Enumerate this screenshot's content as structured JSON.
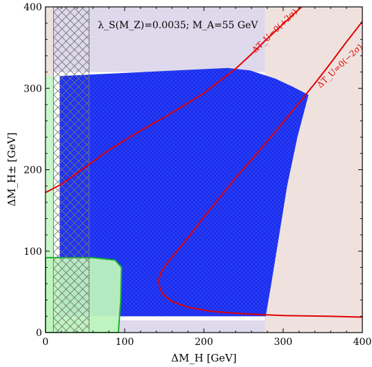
{
  "chart_data": {
    "type": "line",
    "xlabel": "ΔM_H [GeV]",
    "ylabel": "ΔM_H± [GeV]",
    "xlim": [
      0,
      400
    ],
    "ylim": [
      0,
      400
    ],
    "x_ticks": [
      0,
      100,
      200,
      300,
      400
    ],
    "y_ticks": [
      0,
      100,
      200,
      300,
      400
    ],
    "annotation": "λ_S(M_Z)=0.0035; M_A=55 GeV",
    "regions": {
      "background_excluded": {
        "fill": "#dcd7ea"
      },
      "right_excluded": {
        "fill": "#efe2de",
        "x": [
          277,
          400
        ],
        "y": [
          0,
          400
        ]
      },
      "top_left_strip": {
        "fill": "#efe2de",
        "x": [
          0,
          10
        ],
        "y": [
          315,
          400
        ]
      },
      "left_green_strip": {
        "fill": "#c8f7c8",
        "x": [
          0,
          10
        ],
        "y": [
          0,
          315
        ]
      },
      "white_band": {
        "fill": "#ffffff",
        "x": [
          10,
          277
        ],
        "y": [
          15,
          320
        ]
      },
      "blue_allowed": {
        "fill": "#1a2ef0",
        "boundary": [
          [
            18,
            20
          ],
          [
            18,
            315
          ],
          [
            230,
            325
          ],
          [
            258,
            322
          ],
          [
            290,
            312
          ],
          [
            312,
            302
          ],
          [
            332,
            292
          ],
          [
            318,
            240
          ],
          [
            305,
            180
          ],
          [
            295,
            120
          ],
          [
            285,
            60
          ],
          [
            278,
            20
          ]
        ]
      },
      "green_region": {
        "fill": "#bdf4bd",
        "stroke": "#16b030",
        "boundary": [
          [
            0,
            0
          ],
          [
            0,
            92
          ],
          [
            60,
            92
          ],
          [
            88,
            89
          ],
          [
            96,
            80
          ],
          [
            95,
            40
          ],
          [
            92,
            0
          ]
        ]
      },
      "hatched_region": {
        "x": [
          10,
          55
        ],
        "y": [
          0,
          400
        ]
      }
    },
    "series": [
      {
        "name": "ΔT_U=0(+2σ)",
        "color": "#e00000",
        "x": [
          0,
          20,
          40,
          60,
          80,
          100,
          120,
          140,
          160,
          180,
          200,
          220,
          240,
          260,
          280,
          300,
          320,
          340,
          350
        ],
        "y": [
          172,
          182,
          196,
          210,
          224,
          236,
          248,
          259,
          270,
          282,
          294,
          309,
          324,
          342,
          361,
          379,
          397,
          415,
          424
        ]
      },
      {
        "name": "ΔT_U=0(−2σ)",
        "color": "#e00000",
        "x": [
          400,
          380,
          360,
          340,
          320,
          300,
          280,
          260,
          240,
          220,
          200,
          185,
          172,
          160,
          152,
          146,
          143,
          144,
          148,
          160,
          180,
          210,
          250,
          300,
          360,
          400
        ],
        "y": [
          382,
          357,
          331,
          306,
          282,
          258,
          235,
          212,
          190,
          166,
          142,
          123,
          107,
          93,
          83,
          74,
          65,
          56,
          47,
          38,
          31,
          26,
          23,
          21,
          20,
          19
        ]
      }
    ]
  }
}
